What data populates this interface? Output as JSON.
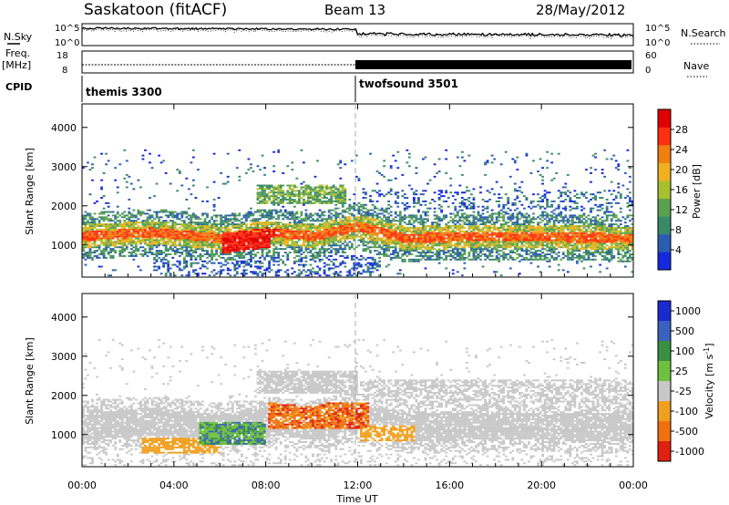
{
  "header": {
    "station": "Saskatoon (fitACF)",
    "beam": "Beam 13",
    "date": "28/May/2012"
  },
  "side_labels": {
    "nsky": "N.Sky",
    "freq": "Freq.",
    "freq_unit": "[MHz]",
    "cpid": "CPID",
    "nsearch": "N.Search",
    "nave": "Nave"
  },
  "top_axes": {
    "nsky_ticks": [
      "10^5",
      "10^0"
    ],
    "nsearch_ticks": [
      "10^5",
      "10^0"
    ],
    "freq_ticks": [
      "18",
      "8"
    ],
    "nave_ticks": [
      "60",
      "0"
    ]
  },
  "cpid_labels": [
    {
      "name": "themis 3300",
      "start_hour": 0
    },
    {
      "name": "twofsound 3501",
      "start_hour": 12
    }
  ],
  "chart_data": [
    {
      "type": "heatmap",
      "panel": "power",
      "ylabel": "Slant Range [km]",
      "yticks": [
        "4000",
        "3000",
        "2000",
        "1000"
      ],
      "ytick_values": [
        4000,
        3000,
        2000,
        1000
      ],
      "ylim": [
        180,
        4600
      ],
      "xlim": [
        0,
        24
      ],
      "colorbar_label": "Power [dB]",
      "colorbar_ticks": [
        "28",
        "24",
        "20",
        "16",
        "12",
        "8",
        "4"
      ],
      "colorbar_values": [
        28,
        24,
        20,
        16,
        12,
        8,
        4
      ],
      "colorbar_range": [
        0,
        32
      ],
      "colors": [
        "#1428e0",
        "#2a5cb0",
        "#3a8a6a",
        "#5aa050",
        "#a8c030",
        "#f0b020",
        "#f08010",
        "#ff3010",
        "#e00000"
      ],
      "band_center_km": [
        [
          0,
          1200
        ],
        [
          3,
          1300
        ],
        [
          6,
          1150
        ],
        [
          8,
          1300
        ],
        [
          10,
          1200
        ],
        [
          12,
          1450
        ],
        [
          14,
          1150
        ],
        [
          18,
          1200
        ],
        [
          24,
          1150
        ]
      ]
    },
    {
      "type": "heatmap",
      "panel": "velocity",
      "ylabel": "Slant Range [km]",
      "yticks": [
        "4000",
        "3000",
        "2000",
        "1000"
      ],
      "ytick_values": [
        4000,
        3000,
        2000,
        1000
      ],
      "ylim": [
        180,
        4600
      ],
      "xlim": [
        0,
        24
      ],
      "colorbar_label": "Velocity [m s^-1]",
      "colorbar_ticks": [
        "1000",
        "500",
        "100",
        "25",
        "-25",
        "-100",
        "-500",
        "-1000"
      ],
      "colorbar_values": [
        1000,
        500,
        100,
        25,
        -25,
        -100,
        -500,
        -1000
      ],
      "colors": [
        "#1a2ad0",
        "#3a60c0",
        "#3a9040",
        "#70c040",
        "#c8c8c8",
        "#f0a020",
        "#f07010",
        "#e02010"
      ]
    }
  ],
  "xaxis": {
    "label": "Time UT",
    "ticks": [
      "00:00",
      "04:00",
      "08:00",
      "12:00",
      "16:00",
      "20:00",
      "00:00"
    ],
    "tick_hours": [
      0,
      4,
      8,
      12,
      16,
      20,
      24
    ]
  },
  "colors": {
    "border": "#000000",
    "dashed": "#999999",
    "background": "#ffffff"
  }
}
